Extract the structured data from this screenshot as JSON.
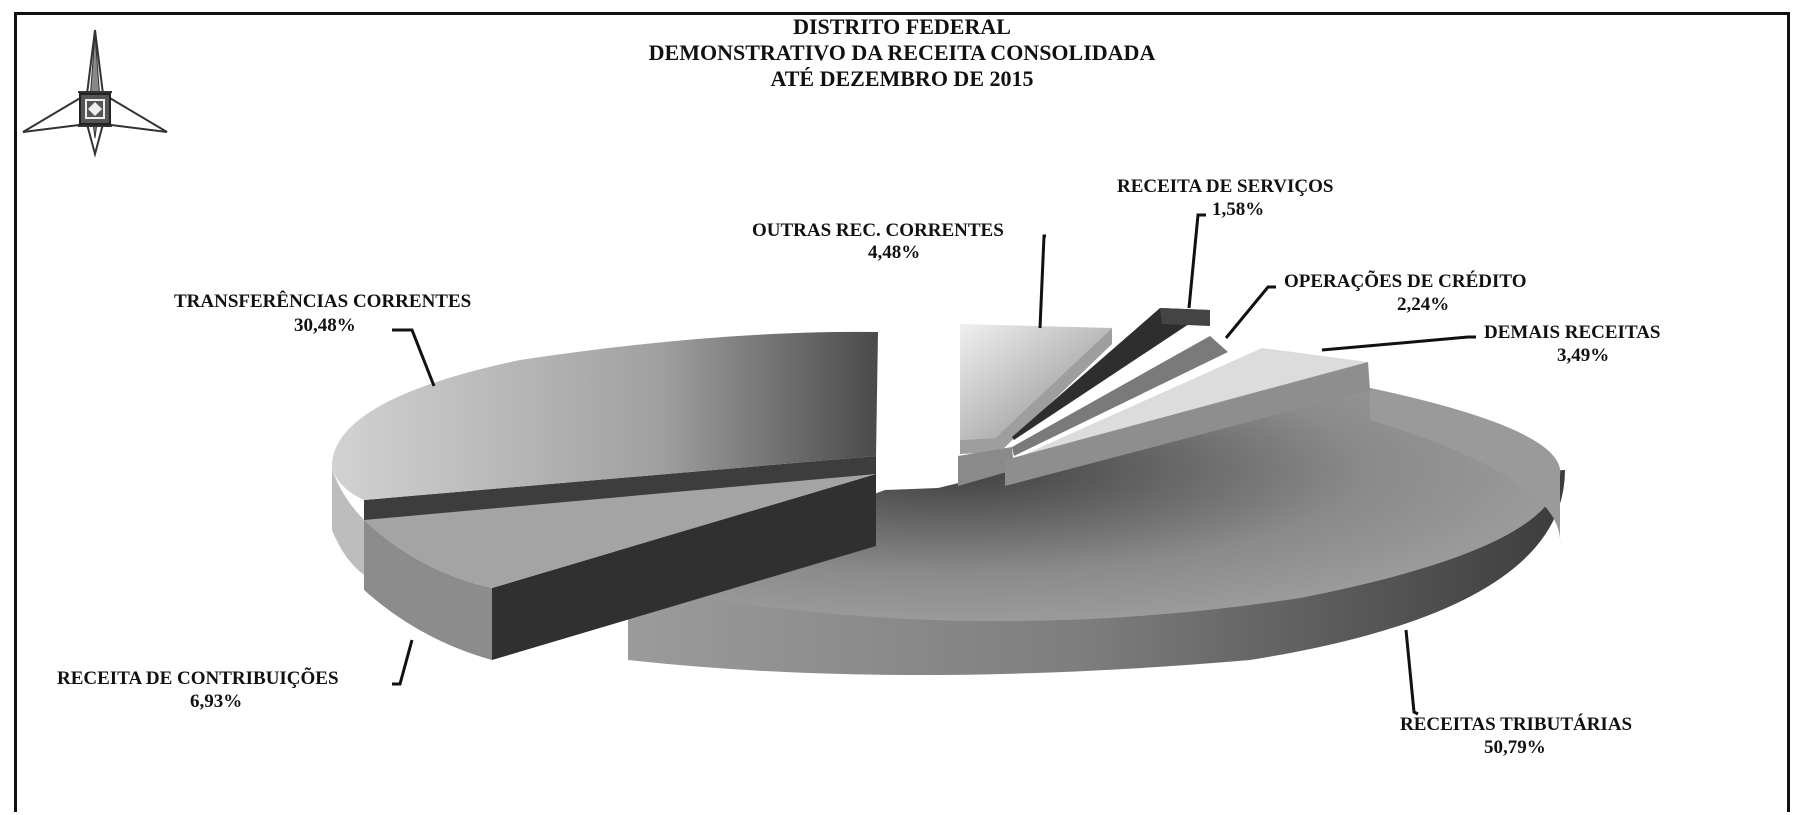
{
  "chart_data": {
    "type": "pie",
    "title": "DISTRITO FEDERAL",
    "subtitle": [
      "DEMONSTRATIVO DA RECEITA  CONSOLIDADA",
      "ATÉ  DEZEMBRO DE 2015"
    ],
    "slices": [
      {
        "label": "RECEITAS TRIBUTÁRIAS",
        "value_label": "50,79%",
        "value": 50.79,
        "color": "#8f8f8f"
      },
      {
        "label": "RECEITA DE CONTRIBUIÇÕES",
        "value_label": "6,93%",
        "value": 6.93,
        "color": "#3a3a3a"
      },
      {
        "label": "TRANSFERÊNCIAS CORRENTES",
        "value_label": "30,48%",
        "value": 30.48,
        "color": "#b5b5b5"
      },
      {
        "label": "OUTRAS REC. CORRENTES",
        "value_label": "4,48%",
        "value": 4.48,
        "color": "#d6d6d6"
      },
      {
        "label": "RECEITA DE SERVIÇOS",
        "value_label": "1,58%",
        "value": 1.58,
        "color": "#353535"
      },
      {
        "label": "OPERAÇÕES DE CRÉDITO",
        "value_label": "2,24%",
        "value": 2.24,
        "color": "#7a7a7a"
      },
      {
        "label": "DEMAIS RECEITAS",
        "value_label": "3,49%",
        "value": 3.49,
        "color": "#dedede"
      }
    ]
  }
}
